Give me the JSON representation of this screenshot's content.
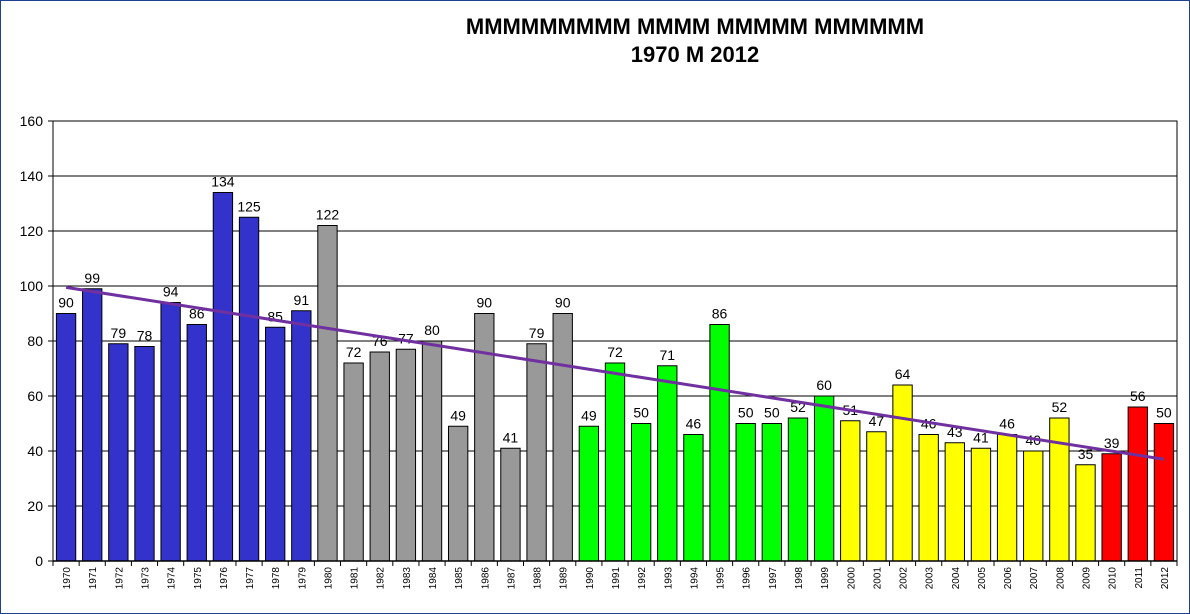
{
  "chart_data": {
    "type": "bar",
    "title": "MMMMMMMMM MMMM MMMMM MMMMMM",
    "subtitle": "1970 M 2012",
    "xlabel": "",
    "ylabel": "",
    "ylim": [
      0,
      160
    ],
    "yticks": [
      0,
      20,
      40,
      60,
      80,
      100,
      120,
      140,
      160
    ],
    "grid": true,
    "legend": "none",
    "categories": [
      "1970",
      "1971",
      "1972",
      "1973",
      "1974",
      "1975",
      "1976",
      "1977",
      "1978",
      "1979",
      "1980",
      "1981",
      "1982",
      "1983",
      "1984",
      "1985",
      "1986",
      "1987",
      "1988",
      "1989",
      "1990",
      "1991",
      "1992",
      "1993",
      "1994",
      "1995",
      "1996",
      "1997",
      "1998",
      "1999",
      "2000",
      "2001",
      "2002",
      "2003",
      "2004",
      "2005",
      "2006",
      "2007",
      "2008",
      "2009",
      "2010",
      "2011",
      "2012"
    ],
    "values": [
      90,
      99,
      79,
      78,
      94,
      86,
      134,
      125,
      85,
      91,
      122,
      72,
      76,
      77,
      80,
      49,
      90,
      41,
      79,
      90,
      49,
      72,
      50,
      71,
      46,
      86,
      50,
      50,
      52,
      60,
      51,
      47,
      64,
      46,
      43,
      41,
      46,
      40,
      52,
      35,
      39,
      56,
      50
    ],
    "bar_colors": [
      "#3333cc",
      "#3333cc",
      "#3333cc",
      "#3333cc",
      "#3333cc",
      "#3333cc",
      "#3333cc",
      "#3333cc",
      "#3333cc",
      "#3333cc",
      "#999999",
      "#999999",
      "#999999",
      "#999999",
      "#999999",
      "#999999",
      "#999999",
      "#999999",
      "#999999",
      "#999999",
      "#00ff00",
      "#00ff00",
      "#00ff00",
      "#00ff00",
      "#00ff00",
      "#00ff00",
      "#00ff00",
      "#00ff00",
      "#00ff00",
      "#00ff00",
      "#ffff00",
      "#ffff00",
      "#ffff00",
      "#ffff00",
      "#ffff00",
      "#ffff00",
      "#ffff00",
      "#ffff00",
      "#ffff00",
      "#ffff00",
      "#ff0000",
      "#ff0000",
      "#ff0000"
    ],
    "trendline": {
      "type": "linear",
      "color": "#7030a0",
      "start": 99.5,
      "end": 37
    }
  }
}
